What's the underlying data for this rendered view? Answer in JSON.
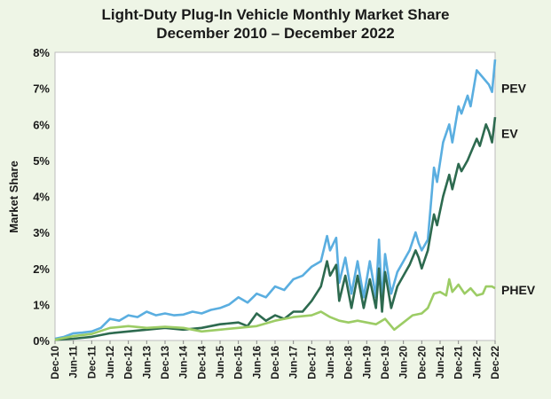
{
  "chart_data": {
    "type": "line",
    "title": "Light-Duty Plug-In Vehicle Monthly Market Share",
    "subtitle": "December 2010 – December 2022",
    "xlabel": "",
    "ylabel": "Market Share",
    "ylim": [
      0,
      8
    ],
    "y_ticks": [
      "0%",
      "1%",
      "2%",
      "3%",
      "4%",
      "5%",
      "6%",
      "7%",
      "8%"
    ],
    "x_ticks": [
      "Dec-10",
      "Jun-11",
      "Dec-11",
      "Jun-12",
      "Dec-12",
      "Jun-13",
      "Dec-13",
      "Jun-14",
      "Dec-14",
      "Jun-15",
      "Dec-15",
      "Jun-16",
      "Dec-16",
      "Jun-17",
      "Dec-17",
      "Jun-18",
      "Dec-18",
      "Jun-19",
      "Dec-19",
      "Jun-20",
      "Dec-20",
      "Jun-21",
      "Dec-21",
      "Jun-22",
      "Dec-22"
    ],
    "grid": false,
    "legend": "inline labels at right",
    "series": [
      {
        "name": "PEV",
        "color": "#5aaee0",
        "points": [
          [
            0,
            0.05
          ],
          [
            3,
            0.1
          ],
          [
            6,
            0.2
          ],
          [
            9,
            0.22
          ],
          [
            12,
            0.25
          ],
          [
            15,
            0.35
          ],
          [
            18,
            0.6
          ],
          [
            21,
            0.55
          ],
          [
            24,
            0.7
          ],
          [
            27,
            0.65
          ],
          [
            30,
            0.8
          ],
          [
            33,
            0.7
          ],
          [
            36,
            0.75
          ],
          [
            39,
            0.7
          ],
          [
            42,
            0.72
          ],
          [
            45,
            0.8
          ],
          [
            48,
            0.75
          ],
          [
            51,
            0.85
          ],
          [
            54,
            0.9
          ],
          [
            57,
            1.0
          ],
          [
            60,
            1.2
          ],
          [
            63,
            1.05
          ],
          [
            66,
            1.3
          ],
          [
            69,
            1.2
          ],
          [
            72,
            1.5
          ],
          [
            75,
            1.4
          ],
          [
            78,
            1.7
          ],
          [
            81,
            1.8
          ],
          [
            84,
            2.05
          ],
          [
            87,
            2.2
          ],
          [
            89,
            2.9
          ],
          [
            90,
            2.5
          ],
          [
            92,
            2.85
          ],
          [
            93,
            1.6
          ],
          [
            95,
            2.3
          ],
          [
            97,
            1.3
          ],
          [
            99,
            2.2
          ],
          [
            101,
            1.2
          ],
          [
            103,
            2.2
          ],
          [
            105,
            1.2
          ],
          [
            106,
            2.8
          ],
          [
            107,
            1.0
          ],
          [
            108,
            2.4
          ],
          [
            110,
            1.3
          ],
          [
            112,
            1.9
          ],
          [
            114,
            2.2
          ],
          [
            116,
            2.5
          ],
          [
            118,
            3.0
          ],
          [
            119,
            2.7
          ],
          [
            120,
            2.5
          ],
          [
            122,
            2.8
          ],
          [
            124,
            4.8
          ],
          [
            125,
            4.4
          ],
          [
            127,
            5.5
          ],
          [
            129,
            6.0
          ],
          [
            130,
            5.5
          ],
          [
            132,
            6.5
          ],
          [
            133,
            6.3
          ],
          [
            135,
            6.8
          ],
          [
            136,
            6.5
          ],
          [
            138,
            7.5
          ],
          [
            140,
            7.3
          ],
          [
            142,
            7.1
          ],
          [
            143,
            6.9
          ],
          [
            144,
            7.8
          ]
        ]
      },
      {
        "name": "EV",
        "color": "#2d6a4f",
        "points": [
          [
            0,
            0.02
          ],
          [
            6,
            0.05
          ],
          [
            12,
            0.1
          ],
          [
            18,
            0.2
          ],
          [
            24,
            0.25
          ],
          [
            30,
            0.3
          ],
          [
            36,
            0.35
          ],
          [
            42,
            0.3
          ],
          [
            48,
            0.35
          ],
          [
            54,
            0.45
          ],
          [
            60,
            0.5
          ],
          [
            63,
            0.4
          ],
          [
            66,
            0.75
          ],
          [
            69,
            0.55
          ],
          [
            72,
            0.7
          ],
          [
            75,
            0.6
          ],
          [
            78,
            0.8
          ],
          [
            81,
            0.8
          ],
          [
            84,
            1.1
          ],
          [
            87,
            1.5
          ],
          [
            89,
            2.2
          ],
          [
            90,
            1.8
          ],
          [
            92,
            2.1
          ],
          [
            93,
            1.1
          ],
          [
            95,
            1.8
          ],
          [
            97,
            0.9
          ],
          [
            99,
            1.8
          ],
          [
            101,
            0.9
          ],
          [
            103,
            1.7
          ],
          [
            105,
            0.9
          ],
          [
            106,
            2.0
          ],
          [
            107,
            0.8
          ],
          [
            108,
            1.9
          ],
          [
            110,
            0.9
          ],
          [
            112,
            1.5
          ],
          [
            114,
            1.8
          ],
          [
            116,
            2.1
          ],
          [
            118,
            2.5
          ],
          [
            119,
            2.3
          ],
          [
            120,
            2.0
          ],
          [
            122,
            2.5
          ],
          [
            124,
            3.5
          ],
          [
            125,
            3.2
          ],
          [
            127,
            4.0
          ],
          [
            129,
            4.6
          ],
          [
            130,
            4.2
          ],
          [
            132,
            4.9
          ],
          [
            133,
            4.7
          ],
          [
            135,
            5.0
          ],
          [
            136,
            5.2
          ],
          [
            138,
            5.6
          ],
          [
            139,
            5.4
          ],
          [
            141,
            6.0
          ],
          [
            142,
            5.8
          ],
          [
            143,
            5.5
          ],
          [
            144,
            6.2
          ]
        ]
      },
      {
        "name": "PHEV",
        "color": "#9ccc65",
        "points": [
          [
            0,
            0.02
          ],
          [
            6,
            0.12
          ],
          [
            12,
            0.18
          ],
          [
            18,
            0.35
          ],
          [
            24,
            0.4
          ],
          [
            30,
            0.35
          ],
          [
            36,
            0.38
          ],
          [
            42,
            0.35
          ],
          [
            48,
            0.25
          ],
          [
            54,
            0.3
          ],
          [
            60,
            0.35
          ],
          [
            66,
            0.4
          ],
          [
            72,
            0.55
          ],
          [
            78,
            0.65
          ],
          [
            84,
            0.7
          ],
          [
            87,
            0.8
          ],
          [
            90,
            0.65
          ],
          [
            93,
            0.55
          ],
          [
            96,
            0.5
          ],
          [
            99,
            0.55
          ],
          [
            102,
            0.5
          ],
          [
            105,
            0.45
          ],
          [
            108,
            0.6
          ],
          [
            111,
            0.3
          ],
          [
            114,
            0.5
          ],
          [
            117,
            0.7
          ],
          [
            120,
            0.75
          ],
          [
            122,
            0.9
          ],
          [
            124,
            1.3
          ],
          [
            126,
            1.35
          ],
          [
            128,
            1.25
          ],
          [
            129,
            1.7
          ],
          [
            130,
            1.35
          ],
          [
            132,
            1.55
          ],
          [
            134,
            1.3
          ],
          [
            136,
            1.45
          ],
          [
            138,
            1.25
          ],
          [
            140,
            1.3
          ],
          [
            141,
            1.5
          ],
          [
            143,
            1.5
          ],
          [
            144,
            1.45
          ]
        ]
      }
    ]
  }
}
